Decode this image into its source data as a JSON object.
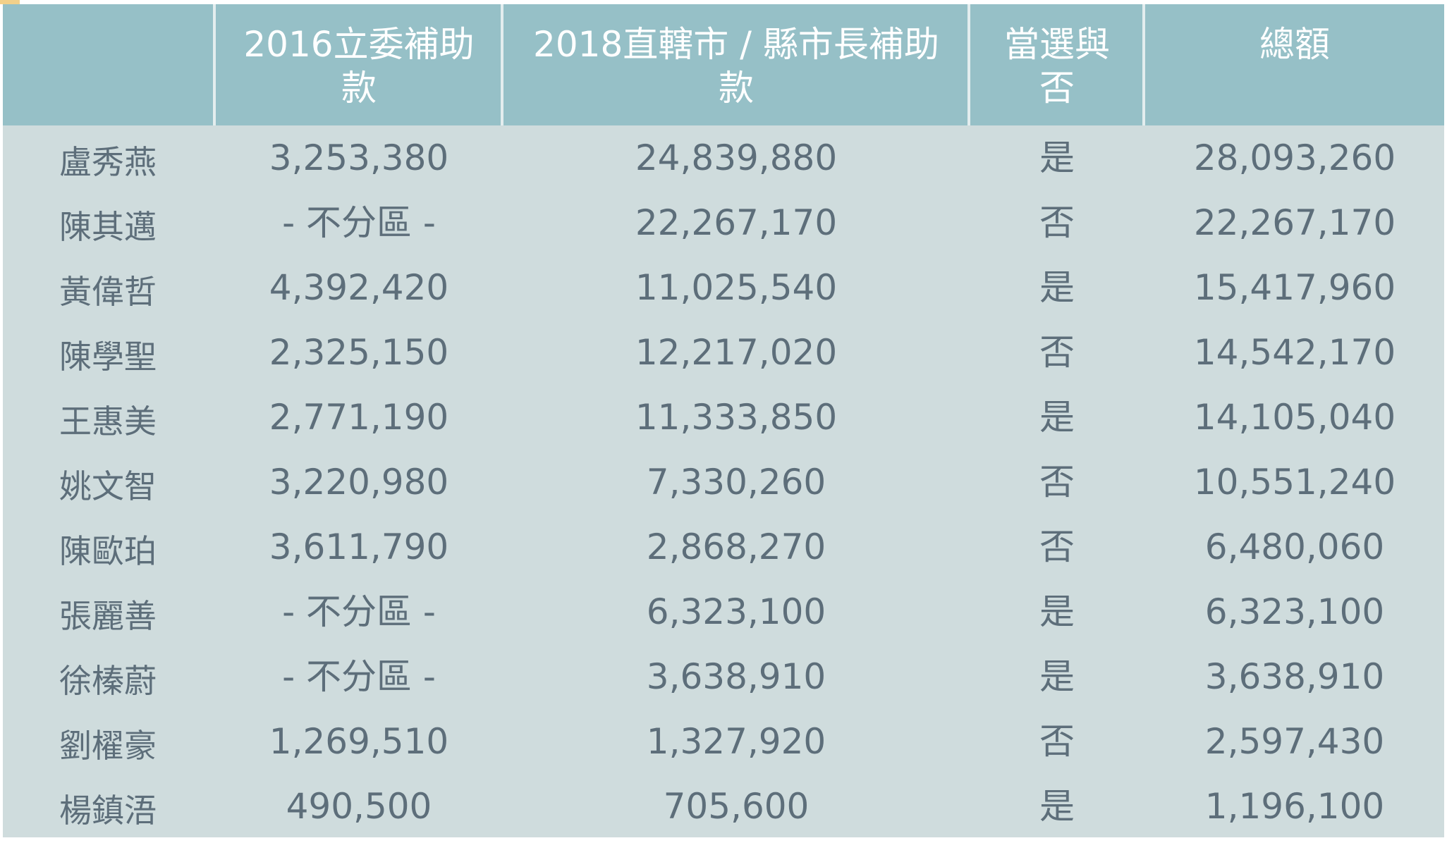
{
  "chart_data": {
    "type": "table",
    "columns": [
      "",
      "2016立委補助款",
      "2018直轄市 / 縣市長補助款",
      "當選與否",
      "總額"
    ],
    "rows": [
      {
        "name": "盧秀燕",
        "c2016": "3,253,380",
        "c2018": "24,839,880",
        "elected": "是",
        "total": "28,093,260"
      },
      {
        "name": "陳其邁",
        "c2016": "- 不分區 -",
        "c2018": "22,267,170",
        "elected": "否",
        "total": "22,267,170"
      },
      {
        "name": "黃偉哲",
        "c2016": "4,392,420",
        "c2018": "11,025,540",
        "elected": "是",
        "total": "15,417,960"
      },
      {
        "name": "陳學聖",
        "c2016": "2,325,150",
        "c2018": "12,217,020",
        "elected": "否",
        "total": "14,542,170"
      },
      {
        "name": "王惠美",
        "c2016": "2,771,190",
        "c2018": "11,333,850",
        "elected": "是",
        "total": "14,105,040"
      },
      {
        "name": "姚文智",
        "c2016": "3,220,980",
        "c2018": "7,330,260",
        "elected": "否",
        "total": "10,551,240"
      },
      {
        "name": "陳歐珀",
        "c2016": "3,611,790",
        "c2018": "2,868,270",
        "elected": "否",
        "total": "6,480,060"
      },
      {
        "name": "張麗善",
        "c2016": "- 不分區 -",
        "c2018": "6,323,100",
        "elected": "是",
        "total": "6,323,100"
      },
      {
        "name": "徐榛蔚",
        "c2016": "- 不分區 -",
        "c2018": "3,638,910",
        "elected": "是",
        "total": "3,638,910"
      },
      {
        "name": "劉櫂豪",
        "c2016": "1,269,510",
        "c2018": "1,327,920",
        "elected": "否",
        "total": "2,597,430"
      },
      {
        "name": "楊鎮浯",
        "c2016": "490,500",
        "c2018": "705,600",
        "elected": "是",
        "total": "1,196,100"
      }
    ],
    "header_lines": {
      "c2016": [
        "2016立委補助",
        "款"
      ],
      "c2018": [
        "2018直轄市 / 縣市長補助",
        "款"
      ],
      "elected": [
        "當選與",
        "否"
      ],
      "total": [
        "總額"
      ]
    },
    "colors": {
      "header_bg": "#96c0c7",
      "body_bg": "#cfdcdd",
      "header_text": "#ffffff",
      "body_text": "#5d6e7a"
    }
  }
}
